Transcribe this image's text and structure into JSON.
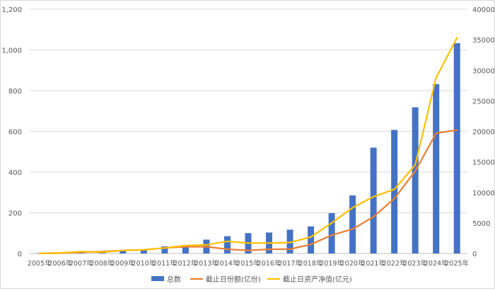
{
  "chart_data": {
    "type": "bar+line",
    "categories": [
      "2005年",
      "2006年",
      "2007年",
      "2008年",
      "2009年",
      "2010年",
      "2011年",
      "2012年",
      "2013年",
      "2014年",
      "2015年",
      "2016年",
      "2017年",
      "2018年",
      "2019年",
      "2020年",
      "2021年",
      "2022年",
      "2023年",
      "2024年",
      "2025年"
    ],
    "y_left": {
      "ticks": [
        "0",
        "200",
        "400",
        "600",
        "800",
        "1,000",
        "1,200"
      ],
      "min": 0,
      "max": 1200
    },
    "y_right": {
      "ticks": [
        "0",
        "5000",
        "10000",
        "15000",
        "20000",
        "25000",
        "30000",
        "35000",
        "40000"
      ],
      "min": 0,
      "max": 40000
    },
    "grid": true,
    "legend_position": "bottom",
    "series": [
      {
        "name": "总数",
        "type": "bar",
        "axis": "left",
        "color": "#4472C4",
        "values": [
          2,
          4,
          7,
          9,
          12,
          20,
          35,
          40,
          68,
          85,
          100,
          103,
          117,
          133,
          198,
          285,
          520,
          607,
          718,
          832,
          1033
        ]
      },
      {
        "name": "截止日份额(亿份)",
        "type": "line",
        "axis": "right",
        "color": "#ED7D31",
        "values": [
          5,
          60,
          200,
          300,
          500,
          600,
          900,
          1100,
          1100,
          700,
          500,
          700,
          700,
          1500,
          3000,
          4000,
          6000,
          9000,
          13500,
          19700,
          20200
        ]
      },
      {
        "name": "截止日资产净值(亿元)",
        "type": "line",
        "axis": "right",
        "color": "#FFC000",
        "values": [
          10,
          100,
          300,
          200,
          500,
          600,
          900,
          1300,
          1400,
          2000,
          1700,
          1700,
          1800,
          2700,
          5000,
          7500,
          9300,
          10500,
          14500,
          28800,
          35300
        ]
      }
    ]
  }
}
